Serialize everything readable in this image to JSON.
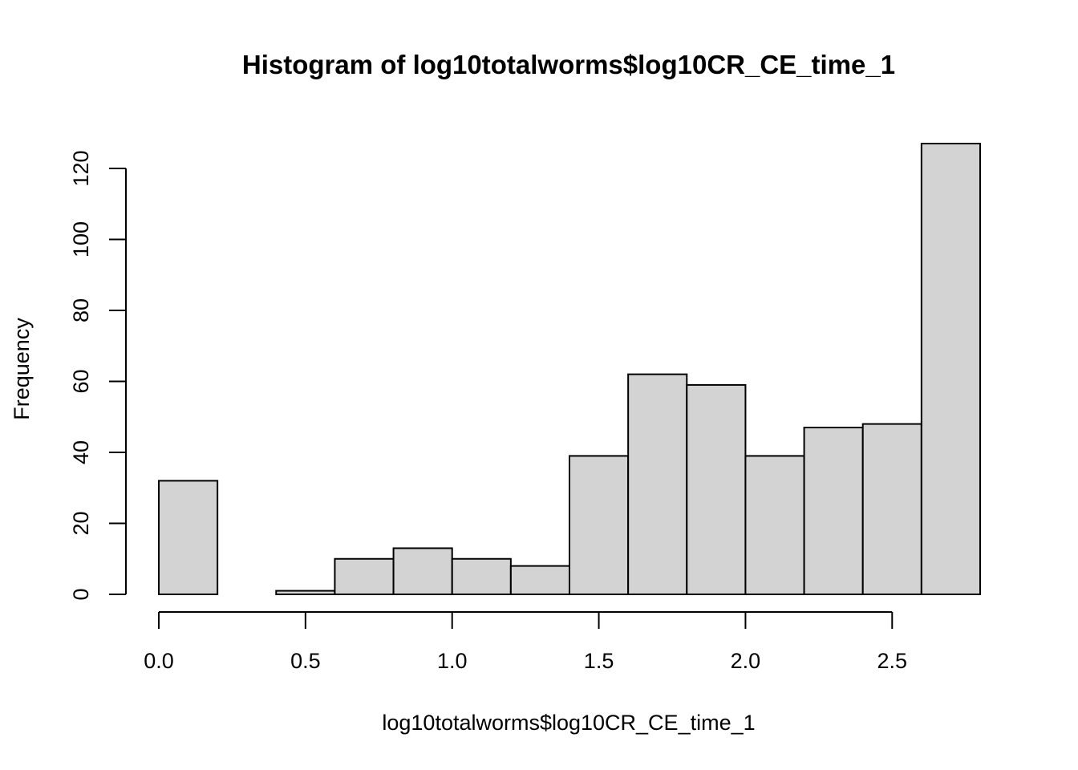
{
  "chart_data": {
    "type": "bar",
    "title": "Histogram of log10totalworms$log10CR_CE_time_1",
    "xlabel": "log10totalworms$log10CR_CE_time_1",
    "ylabel": "Frequency",
    "breaks": [
      0.0,
      0.2,
      0.4,
      0.6,
      0.8,
      1.0,
      1.2,
      1.4,
      1.6,
      1.8,
      2.0,
      2.2,
      2.4,
      2.6,
      2.8
    ],
    "values": [
      32,
      0,
      1,
      10,
      13,
      10,
      8,
      39,
      62,
      59,
      39,
      47,
      48,
      127
    ],
    "xticks": [
      0.0,
      0.5,
      1.0,
      1.5,
      2.0,
      2.5
    ],
    "xtick_labels": [
      "0.0",
      "0.5",
      "1.0",
      "1.5",
      "2.0",
      "2.5"
    ],
    "yticks": [
      0,
      20,
      40,
      60,
      80,
      100,
      120
    ],
    "ytick_labels": [
      "0",
      "20",
      "40",
      "60",
      "80",
      "100",
      "120"
    ],
    "xlim": [
      0.0,
      2.8
    ],
    "ylim": [
      0,
      127
    ],
    "grid": false,
    "colors": {
      "bar_fill": "#d3d3d3",
      "bar_stroke": "#000000"
    }
  }
}
